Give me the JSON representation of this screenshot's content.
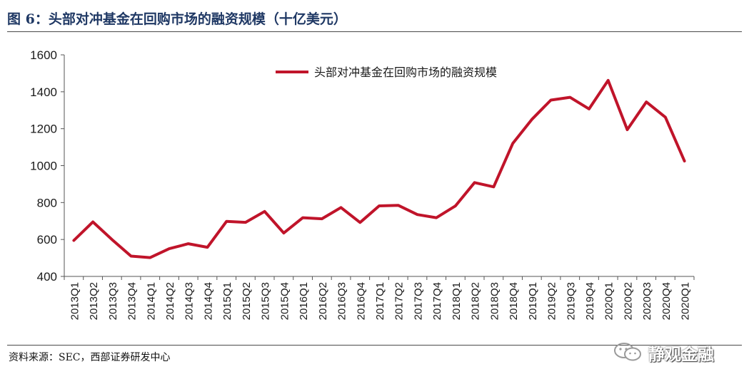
{
  "header": {
    "title": "图 6：头部对冲基金在回购市场的融资规模（十亿美元）"
  },
  "footer": {
    "source": "资料来源：SEC，西部证券研发中心"
  },
  "watermark": {
    "text": "静观金融",
    "icon": "wechat-icon"
  },
  "colors": {
    "series": "#c0142a",
    "title": "#1f3864"
  },
  "chart_data": {
    "type": "line",
    "title": "",
    "xlabel": "",
    "ylabel": "",
    "ylim": [
      400,
      1600
    ],
    "yticks": [
      400,
      600,
      800,
      1000,
      1200,
      1400,
      1600
    ],
    "grid": false,
    "legend_position": "top-center",
    "categories": [
      "2013Q1",
      "2013Q2",
      "2013Q3",
      "2013Q4",
      "2014Q1",
      "2014Q2",
      "2014Q3",
      "2014Q4",
      "2015Q1",
      "2015Q2",
      "2015Q3",
      "2015Q4",
      "2016Q1",
      "2016Q2",
      "2016Q3",
      "2016Q4",
      "2017Q1",
      "2017Q2",
      "2017Q3",
      "2017Q4",
      "2018Q1",
      "2018Q2",
      "2018Q3",
      "2018Q4",
      "2019Q1",
      "2019Q2",
      "2019Q3",
      "2019Q4",
      "2020Q1",
      "2020Q2",
      "2020Q3",
      "2020Q4",
      "2020Q1"
    ],
    "series": [
      {
        "name": "头部对冲基金在回购市场的融资规模",
        "color": "#c0142a",
        "values": [
          595,
          695,
          600,
          510,
          502,
          550,
          577,
          558,
          698,
          693,
          752,
          635,
          718,
          712,
          773,
          692,
          782,
          785,
          735,
          718,
          782,
          908,
          885,
          1120,
          1250,
          1355,
          1370,
          1307,
          1462,
          1195,
          1345,
          1262,
          1025
        ]
      }
    ]
  }
}
